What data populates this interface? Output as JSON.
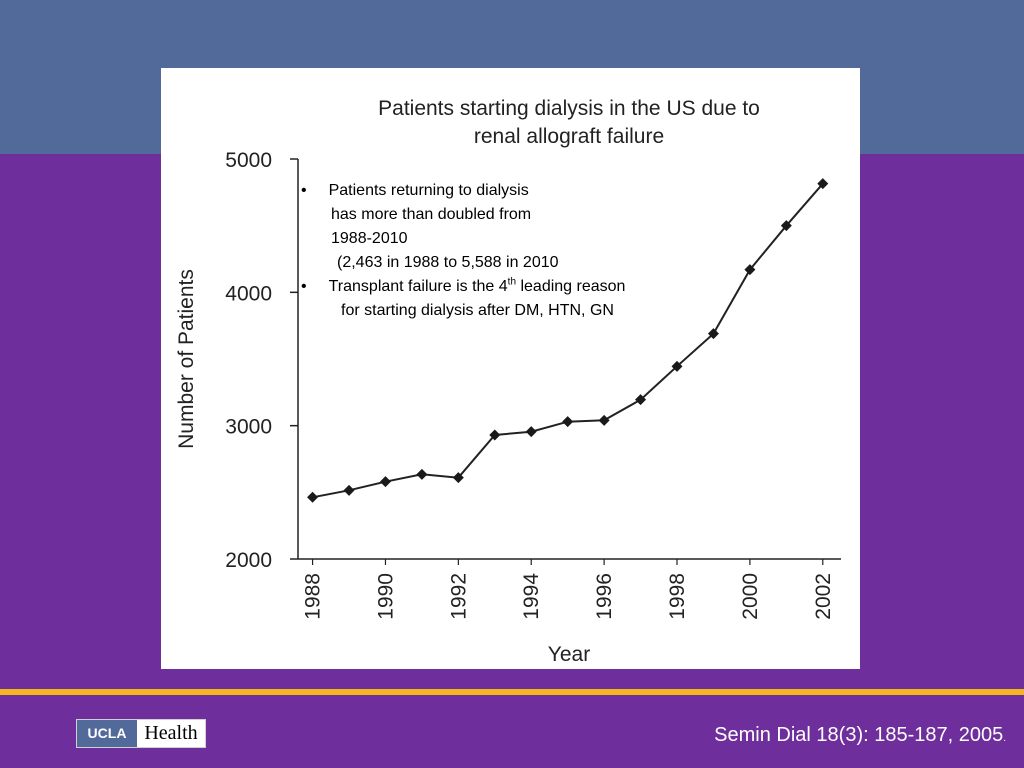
{
  "slide": {
    "background_color": "#6e2f9c",
    "header_band_color": "#526a9a",
    "accent_line_color": "#f5b51e"
  },
  "chart_data": {
    "type": "line",
    "title_lines": [
      "Patients starting dialysis in the US due to",
      "renal allograft failure"
    ],
    "xlabel": "Year",
    "ylabel": "Number of Patients",
    "xlim": [
      1987.6,
      2002.5
    ],
    "ylim": [
      2000,
      5000
    ],
    "x_ticks": [
      1988,
      1990,
      1992,
      1994,
      1996,
      1998,
      2000,
      2002
    ],
    "y_ticks": [
      2000,
      3000,
      4000,
      5000
    ],
    "grid": false,
    "series": [
      {
        "x": [
          1988,
          1989,
          1990,
          1991,
          1992,
          1993,
          1994,
          1995,
          1996,
          1997,
          1998,
          1999,
          2000,
          2001,
          2002
        ],
        "values": [
          2463,
          2515,
          2580,
          2635,
          2610,
          2930,
          2955,
          3030,
          3040,
          3195,
          3445,
          3690,
          4170,
          4500,
          4815
        ]
      }
    ],
    "marker": "diamond",
    "line_color": "#222222",
    "marker_color": "#1a1a1a"
  },
  "notes": {
    "bullet1": {
      "line1": "Patients returning to dialysis",
      "line2": "has more than doubled from",
      "line3": "1988-2010",
      "line4": "(2,463 in 1988 to 5,588 in 2010"
    },
    "bullet2": {
      "line1_before": "Transplant failure is the 4",
      "line1_sup": "th",
      "line1_after": " leading reason",
      "line2": "for starting dialysis after DM, HTN, GN"
    },
    "bullet_char": "•"
  },
  "footer": {
    "logo_left": "UCLA",
    "logo_right": "Health",
    "citation": "Semin Dial 18(3): 185-187, 2005",
    "citation_trailing": "."
  }
}
